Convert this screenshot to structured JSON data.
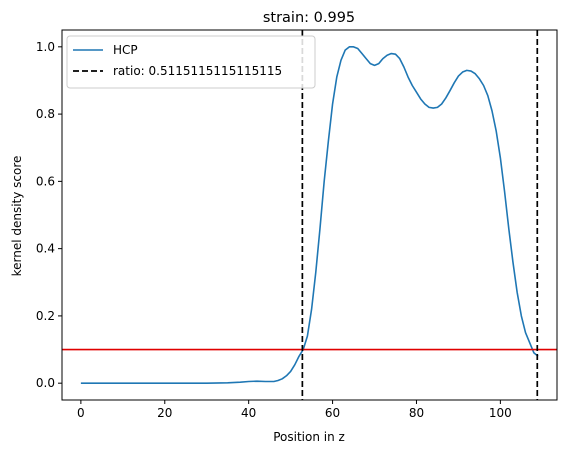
{
  "chart_data": {
    "type": "line",
    "title": "strain: 0.995",
    "xlabel": "Position in z",
    "ylabel": "kernel density score",
    "xlim": [
      -4.5,
      113.5
    ],
    "ylim": [
      -0.05,
      1.05
    ],
    "xticks": [
      0,
      20,
      40,
      60,
      80,
      100
    ],
    "yticks": [
      0.0,
      0.2,
      0.4,
      0.6,
      0.8,
      1.0
    ],
    "xtick_labels": [
      "0",
      "20",
      "40",
      "60",
      "80",
      "100"
    ],
    "ytick_labels": [
      "0.0",
      "0.2",
      "0.4",
      "0.6",
      "0.8",
      "1.0"
    ],
    "grid": false,
    "legend_position": "top-left",
    "series": [
      {
        "name": "HCP",
        "color": "#1f77b4",
        "x": [
          0,
          5,
          10,
          15,
          20,
          25,
          30,
          35,
          38,
          40,
          42,
          44,
          46,
          47,
          48,
          49,
          50,
          51,
          52,
          53,
          54,
          55,
          56,
          57,
          58,
          59,
          60,
          61,
          62,
          63,
          64,
          65,
          66,
          67,
          68,
          69,
          70,
          71,
          72,
          73,
          74,
          75,
          76,
          77,
          78,
          79,
          80,
          81,
          82,
          83,
          84,
          85,
          86,
          87,
          88,
          89,
          90,
          91,
          92,
          93,
          94,
          95,
          96,
          97,
          98,
          99,
          100,
          101,
          102,
          103,
          104,
          105,
          106,
          107,
          108,
          109
        ],
        "y": [
          0.0,
          0.0,
          0.0,
          0.0,
          0.0,
          0.0,
          0.0,
          0.001,
          0.003,
          0.005,
          0.006,
          0.005,
          0.005,
          0.008,
          0.013,
          0.022,
          0.035,
          0.055,
          0.08,
          0.1,
          0.14,
          0.22,
          0.33,
          0.46,
          0.6,
          0.72,
          0.83,
          0.91,
          0.96,
          0.99,
          1.0,
          1.0,
          0.995,
          0.98,
          0.965,
          0.95,
          0.945,
          0.95,
          0.965,
          0.975,
          0.98,
          0.978,
          0.965,
          0.94,
          0.91,
          0.885,
          0.865,
          0.845,
          0.83,
          0.82,
          0.818,
          0.82,
          0.83,
          0.848,
          0.87,
          0.893,
          0.913,
          0.925,
          0.93,
          0.928,
          0.92,
          0.905,
          0.885,
          0.855,
          0.81,
          0.75,
          0.67,
          0.57,
          0.46,
          0.36,
          0.27,
          0.2,
          0.15,
          0.12,
          0.09,
          0.08
        ]
      }
    ],
    "vlines": [
      {
        "x": 52.8,
        "color": "#000000",
        "style": "dashed",
        "legend": "ratio: 0.5115115115115115"
      },
      {
        "x": 108.8,
        "color": "#000000",
        "style": "dashed"
      }
    ],
    "hlines": [
      {
        "y": 0.1,
        "color": "#e00000",
        "style": "solid"
      }
    ]
  }
}
